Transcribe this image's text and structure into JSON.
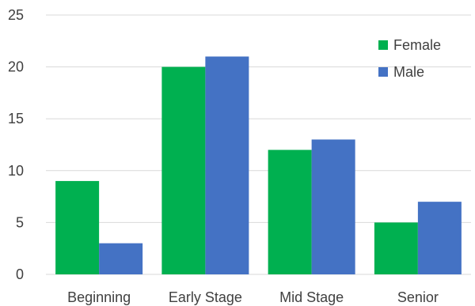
{
  "chart_data": {
    "type": "bar",
    "categories": [
      "Beginning",
      "Early Stage",
      "Mid Stage",
      "Senior"
    ],
    "series": [
      {
        "name": "Female",
        "values": [
          9,
          20,
          12,
          5
        ],
        "color": "#00b050"
      },
      {
        "name": "Male",
        "values": [
          3,
          21,
          13,
          7
        ],
        "color": "#4472c4"
      }
    ],
    "y_ticks": [
      "0",
      "5",
      "10",
      "15",
      "20",
      "25"
    ],
    "ylim": [
      0,
      25
    ],
    "grid": true,
    "legend_position": "top-right",
    "title": "",
    "xlabel": "",
    "ylabel": ""
  }
}
